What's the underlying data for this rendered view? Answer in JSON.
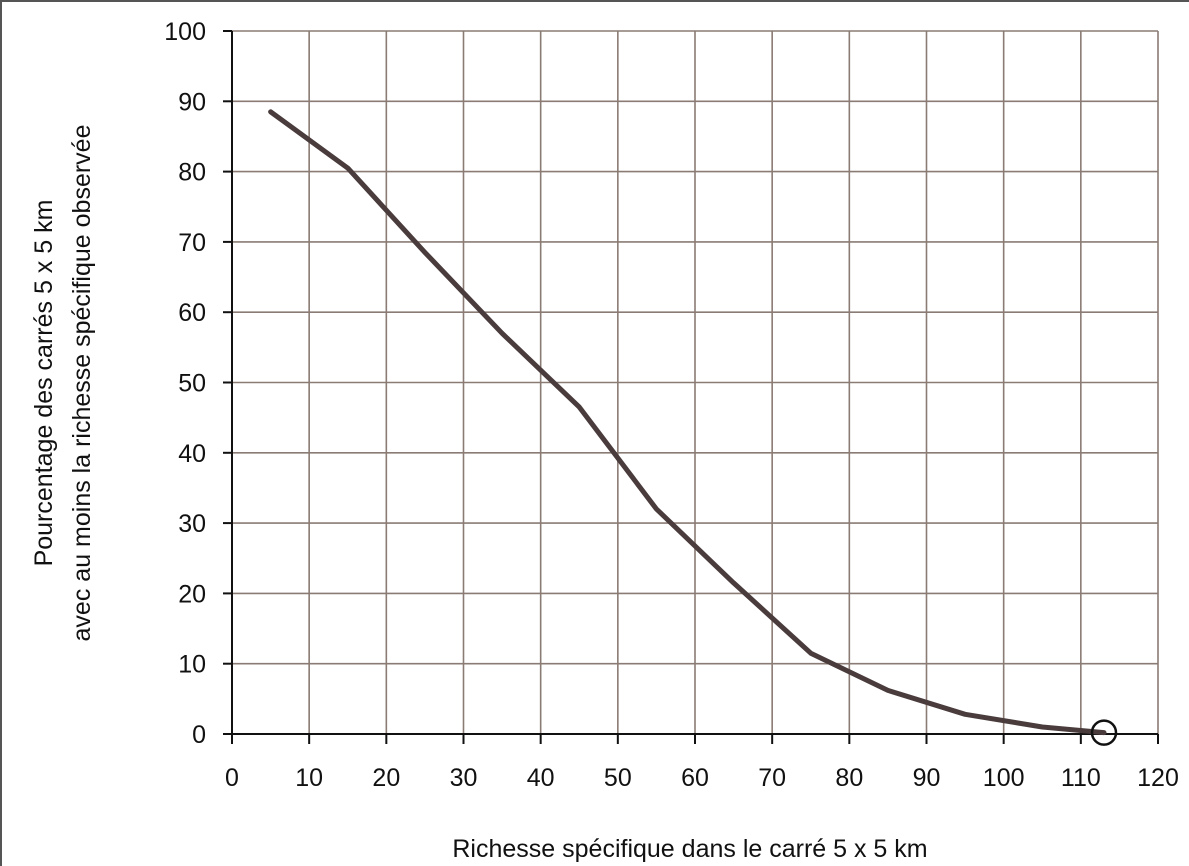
{
  "chart_data": {
    "type": "line",
    "title": "",
    "xlabel": "Richesse spécifique dans le carré 5 x 5 km",
    "ylabel_line1": "Pourcentage des carrés 5 x 5 km",
    "ylabel_line2": "avec au moins la richesse spécifique observée",
    "xlim": [
      0,
      120
    ],
    "ylim": [
      0,
      100
    ],
    "xticks": [
      0,
      10,
      20,
      30,
      40,
      50,
      60,
      70,
      80,
      90,
      100,
      110,
      120
    ],
    "yticks": [
      0,
      10,
      20,
      30,
      40,
      50,
      60,
      70,
      80,
      90,
      100
    ],
    "grid": true,
    "series": [
      {
        "x": [
          5,
          15,
          25,
          35,
          45,
          55,
          65,
          75,
          85,
          95,
          105,
          113
        ],
        "y": [
          88.5,
          80.5,
          68.5,
          57,
          46.5,
          32,
          21.5,
          11.5,
          6.2,
          2.8,
          1.0,
          0.2
        ],
        "color": "#4a3c3c"
      }
    ],
    "end_marker": {
      "x": 113,
      "y": 0.2,
      "shape": "open-circle"
    }
  },
  "colors": {
    "grid": "#8a7b74",
    "axis": "#111111",
    "line": "#4a3c3c"
  }
}
